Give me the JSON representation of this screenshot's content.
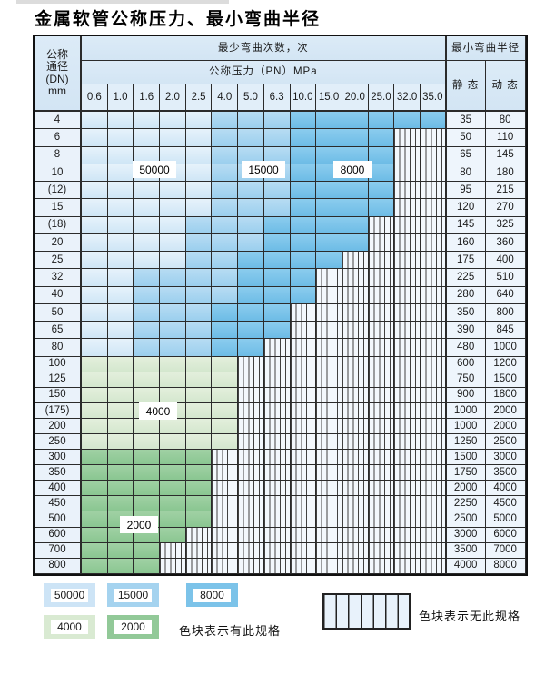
{
  "title": "金属软管公称压力、最小弯曲半径",
  "table": {
    "corner_header": [
      "公称",
      "通径",
      "(DN)",
      "mm"
    ],
    "span_header": "最少弯曲次数，次",
    "pressure_header": "公称压力（PN）MPa",
    "pressures": [
      "0.6",
      "1.0",
      "1.6",
      "2.0",
      "2.5",
      "4.0",
      "5.0",
      "6.3",
      "10.0",
      "15.0",
      "20.0",
      "25.0",
      "32.0",
      "35.0"
    ],
    "radius_header": "最小弯曲半径",
    "static_header": "静 态",
    "dynamic_header": "动 态",
    "zone_code_map": {
      "A": "50000",
      "B": "15000",
      "C": "8000",
      "D": "4000",
      "E": "2000",
      "-": "none"
    },
    "rows": [
      {
        "dn": "4",
        "cells": "AAAAABBBCCCCCC",
        "static": "35",
        "dynamic": "80"
      },
      {
        "dn": "6",
        "cells": "AAAAABBBCCCC--",
        "static": "50",
        "dynamic": "110"
      },
      {
        "dn": "8",
        "cells": "AAAAABBBCCCC--",
        "static": "65",
        "dynamic": "145"
      },
      {
        "dn": "10",
        "cells": "AAAAABBBCCCC--",
        "static": "80",
        "dynamic": "180"
      },
      {
        "dn": "(12)",
        "cells": "AAAAABBBCCCC--",
        "static": "95",
        "dynamic": "215"
      },
      {
        "dn": "15",
        "cells": "AAAAABBBCCCC--",
        "static": "120",
        "dynamic": "270"
      },
      {
        "dn": "(18)",
        "cells": "AAAABBBCCCC---",
        "static": "145",
        "dynamic": "325"
      },
      {
        "dn": "20",
        "cells": "AAAABBBCCCC---",
        "static": "160",
        "dynamic": "360"
      },
      {
        "dn": "25",
        "cells": "AAAABBCCCC----",
        "static": "175",
        "dynamic": "400"
      },
      {
        "dn": "32",
        "cells": "AABBBBCCC-----",
        "static": "225",
        "dynamic": "510"
      },
      {
        "dn": "40",
        "cells": "AABBBBCCC-----",
        "static": "280",
        "dynamic": "640"
      },
      {
        "dn": "50",
        "cells": "AABBBCCC------",
        "static": "350",
        "dynamic": "800"
      },
      {
        "dn": "65",
        "cells": "AABBBCCC------",
        "static": "390",
        "dynamic": "845"
      },
      {
        "dn": "80",
        "cells": "AABBBCC-------",
        "static": "480",
        "dynamic": "1000"
      },
      {
        "dn": "100",
        "cells": "DDDDDD--------",
        "static": "600",
        "dynamic": "1200"
      },
      {
        "dn": "125",
        "cells": "DDDDDD--------",
        "static": "750",
        "dynamic": "1500"
      },
      {
        "dn": "150",
        "cells": "DDDDDD--------",
        "static": "900",
        "dynamic": "1800"
      },
      {
        "dn": "(175)",
        "cells": "DDDDDD--------",
        "static": "1000",
        "dynamic": "2000"
      },
      {
        "dn": "200",
        "cells": "DDDDDD--------",
        "static": "1000",
        "dynamic": "2000"
      },
      {
        "dn": "250",
        "cells": "DDDDDD--------",
        "static": "1250",
        "dynamic": "2500"
      },
      {
        "dn": "300",
        "cells": "EEEEE---------",
        "static": "1500",
        "dynamic": "3000"
      },
      {
        "dn": "350",
        "cells": "EEEEE---------",
        "static": "1750",
        "dynamic": "3500"
      },
      {
        "dn": "400",
        "cells": "EEEEE---------",
        "static": "2000",
        "dynamic": "4000"
      },
      {
        "dn": "450",
        "cells": "EEEEE---------",
        "static": "2250",
        "dynamic": "4500"
      },
      {
        "dn": "500",
        "cells": "EEEEE---------",
        "static": "2500",
        "dynamic": "5000"
      },
      {
        "dn": "600",
        "cells": "EEEE----------",
        "static": "3000",
        "dynamic": "6000"
      },
      {
        "dn": "700",
        "cells": "EEE-----------",
        "static": "3500",
        "dynamic": "7000"
      },
      {
        "dn": "800",
        "cells": "EEE-----------",
        "static": "4000",
        "dynamic": "8000"
      }
    ],
    "overlays": [
      "50000",
      "15000",
      "8000",
      "4000",
      "2000"
    ]
  },
  "legend": {
    "items": [
      {
        "label": "50000",
        "color": "#cde4f6"
      },
      {
        "label": "15000",
        "color": "#a5d3ef"
      },
      {
        "label": "8000",
        "color": "#7cc3e9"
      },
      {
        "label": "4000",
        "color": "#d9ead2"
      },
      {
        "label": "2000",
        "color": "#92c998"
      }
    ],
    "has_spec_text": "色块表示有此规格",
    "no_spec_text": "色块表示无此规格"
  },
  "colors": {
    "zone_50000": "#d5e8f7",
    "zone_15000": "#a9d6f0",
    "zone_8000": "#7cc4e9",
    "zone_4000": "#dbebd5",
    "zone_2000": "#95ca9b",
    "header_bg": "#d8e9f6",
    "label_cell_bg": "#eaf2fa",
    "grid_line": "#2b2b2b"
  }
}
